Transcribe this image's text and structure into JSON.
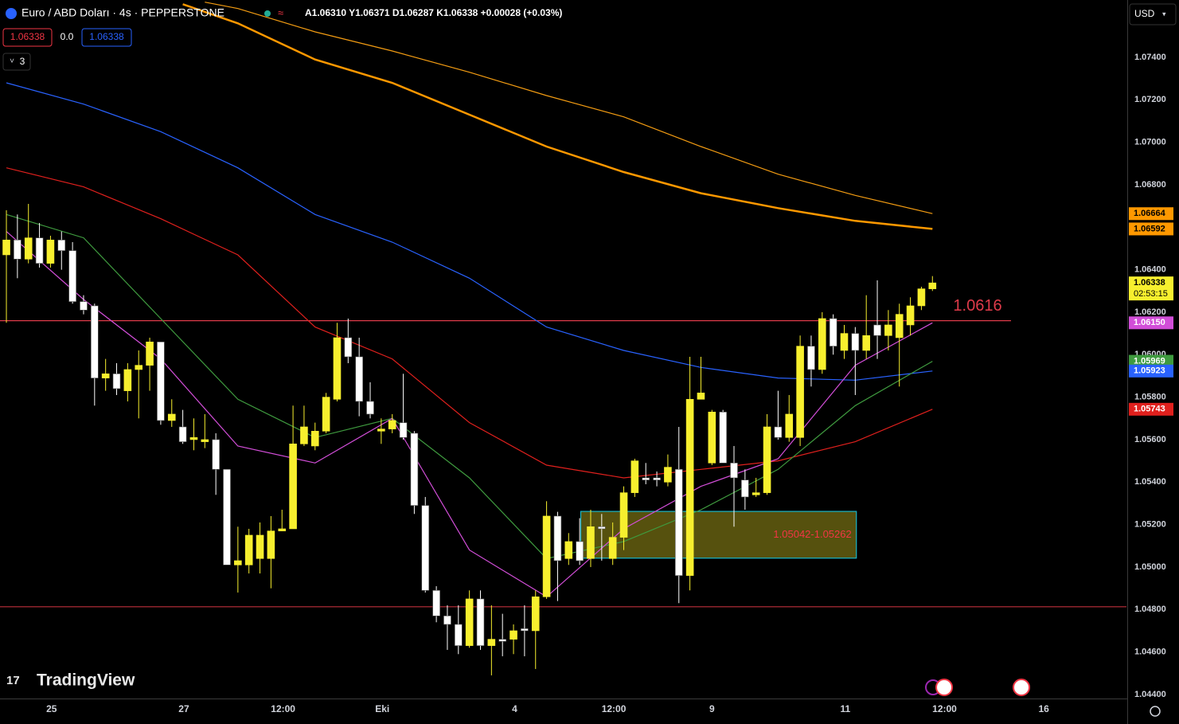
{
  "toolbar": {
    "symbol_title": "Euro / ABD Doları · 4s · PEPPERSTONE",
    "ohlc_legend": "A1.06310 Y1.06371 D1.06287 K1.06338 +0.00028 (+0.03%)",
    "bid": "1.06338",
    "spread": "0.0",
    "ask": "1.06338",
    "indicator_count": "3",
    "currency": "USD",
    "brand": "TradingView"
  },
  "chart_data": {
    "type": "candlestick",
    "candles": {
      "open": [
        1.0647,
        1.0654,
        1.0645,
        1.0655,
        1.0643,
        1.0654,
        1.0649,
        1.0625,
        1.0623,
        1.0589,
        1.0591,
        1.0583,
        1.0593,
        1.0595,
        1.0606,
        1.0569,
        1.0566,
        1.056,
        1.0559,
        1.056,
        1.0546,
        1.0501,
        1.0501,
        1.0504,
        1.0504,
        1.0517,
        1.0518,
        1.0558,
        1.0557,
        1.0564,
        1.0579,
        1.0608,
        1.0599,
        1.0578,
        1.0564,
        1.0565,
        1.0568,
        1.0563,
        1.0529,
        1.0489,
        1.0477,
        1.0473,
        1.0463,
        1.0485,
        1.0463,
        1.0466,
        1.0466,
        1.0471,
        1.047,
        1.0486,
        1.0524,
        1.0504,
        1.0512,
        1.0504,
        1.0519,
        1.0504,
        1.0514,
        1.0535,
        1.0542,
        1.0542,
        1.054,
        1.0546,
        1.0496,
        1.0579,
        1.0549,
        1.0573,
        1.0549,
        1.0541,
        1.0534,
        1.0535,
        1.0566,
        1.0561,
        1.0561,
        1.0604,
        1.0593,
        1.0617,
        1.0602,
        1.061,
        1.0602,
        1.0614,
        1.0609,
        1.0608,
        1.0614,
        1.0623,
        1.0631
      ],
      "high": [
        1.0668,
        1.0666,
        1.0671,
        1.0662,
        1.0656,
        1.0658,
        1.0653,
        1.0628,
        1.0624,
        1.0598,
        1.0596,
        1.0596,
        1.0602,
        1.0608,
        1.0606,
        1.0579,
        1.0574,
        1.057,
        1.0572,
        1.0563,
        1.0546,
        1.0519,
        1.0518,
        1.0521,
        1.0524,
        1.0527,
        1.0576,
        1.0576,
        1.0568,
        1.0582,
        1.0615,
        1.0617,
        1.0608,
        1.0587,
        1.057,
        1.0572,
        1.0591,
        1.0564,
        1.0533,
        1.0491,
        1.0482,
        1.0482,
        1.0489,
        1.0489,
        1.0482,
        1.0478,
        1.0473,
        1.0482,
        1.0489,
        1.0531,
        1.0526,
        1.0516,
        1.0523,
        1.0527,
        1.0525,
        1.0521,
        1.0538,
        1.0551,
        1.0549,
        1.0545,
        1.0553,
        1.0566,
        1.0599,
        1.0599,
        1.0574,
        1.0574,
        1.0557,
        1.0546,
        1.0542,
        1.0572,
        1.0583,
        1.0581,
        1.0609,
        1.0609,
        1.062,
        1.0619,
        1.0614,
        1.0613,
        1.0628,
        1.0635,
        1.0621,
        1.0624,
        1.0627,
        1.0632,
        1.0637
      ],
      "low": [
        1.0615,
        1.0636,
        1.0643,
        1.0641,
        1.0641,
        1.064,
        1.0624,
        1.0619,
        1.0576,
        1.0583,
        1.0581,
        1.0578,
        1.057,
        1.0583,
        1.0567,
        1.0566,
        1.0558,
        1.0555,
        1.0556,
        1.0534,
        1.0501,
        1.0488,
        1.0497,
        1.0497,
        1.049,
        1.0517,
        1.0518,
        1.0557,
        1.0555,
        1.0563,
        1.0578,
        1.0596,
        1.0571,
        1.057,
        1.0558,
        1.0563,
        1.056,
        1.0525,
        1.0488,
        1.0474,
        1.0461,
        1.0459,
        1.0462,
        1.0461,
        1.0449,
        1.0458,
        1.0459,
        1.0458,
        1.0452,
        1.0485,
        1.0484,
        1.0501,
        1.0501,
        1.05,
        1.0503,
        1.0501,
        1.0508,
        1.0533,
        1.0539,
        1.0538,
        1.0538,
        1.0483,
        1.0489,
        1.0579,
        1.0548,
        1.0549,
        1.0519,
        1.0527,
        1.0533,
        1.0534,
        1.056,
        1.0559,
        1.0557,
        1.0585,
        1.0591,
        1.06,
        1.0598,
        1.0581,
        1.0598,
        1.0598,
        1.0602,
        1.0585,
        1.0609,
        1.0621,
        1.063
      ],
      "close": [
        1.0654,
        1.0645,
        1.0655,
        1.0643,
        1.0654,
        1.0649,
        1.0625,
        1.0621,
        1.0589,
        1.0591,
        1.0584,
        1.0593,
        1.0595,
        1.0606,
        1.0569,
        1.0572,
        1.0559,
        1.0561,
        1.056,
        1.0546,
        1.0501,
        1.0503,
        1.0515,
        1.0515,
        1.0517,
        1.0518,
        1.0558,
        1.0566,
        1.0564,
        1.058,
        1.0608,
        1.0599,
        1.0578,
        1.0572,
        1.0565,
        1.0569,
        1.0561,
        1.0529,
        1.0489,
        1.0477,
        1.0473,
        1.0463,
        1.0485,
        1.0463,
        1.0466,
        1.0465,
        1.047,
        1.047,
        1.0486,
        1.0524,
        1.0503,
        1.0512,
        1.0503,
        1.0519,
        1.0518,
        1.0514,
        1.0535,
        1.055,
        1.0541,
        1.0541,
        1.0547,
        1.0496,
        1.0579,
        1.0582,
        1.0573,
        1.0549,
        1.0542,
        1.0533,
        1.0535,
        1.0566,
        1.0561,
        1.0572,
        1.0604,
        1.0593,
        1.0617,
        1.0604,
        1.061,
        1.0602,
        1.0609,
        1.0609,
        1.0614,
        1.0619,
        1.0623,
        1.0631,
        1.06338
      ]
    },
    "up_color": "#f7ef2e",
    "down_color": "#ffffff",
    "countdown": "02:53:15",
    "series": [
      {
        "color": "#ff9800",
        "width": 2.5,
        "x": [
          16,
          21,
          28,
          35,
          42,
          49,
          56,
          63,
          70,
          77,
          84
        ],
        "values": [
          1.0765,
          1.0756,
          1.0739,
          1.0728,
          1.0713,
          1.0698,
          1.0686,
          1.0676,
          1.0669,
          1.0663,
          1.06592
        ]
      },
      {
        "color": "#f39c12",
        "width": 1.2,
        "x": [
          18,
          21,
          28,
          35,
          42,
          49,
          56,
          63,
          70,
          77,
          84
        ],
        "values": [
          1.0766,
          1.0763,
          1.0752,
          1.0743,
          1.0733,
          1.0722,
          1.0712,
          1.0698,
          1.0685,
          1.0675,
          1.06664
        ]
      },
      {
        "color": "#2962ff",
        "width": 1.2,
        "x": [
          0,
          7,
          14,
          21,
          28,
          35,
          42,
          49,
          56,
          63,
          70,
          77,
          84
        ],
        "values": [
          1.0728,
          1.0718,
          1.0705,
          1.0688,
          1.0666,
          1.0653,
          1.0636,
          1.0613,
          1.0602,
          1.0594,
          1.0589,
          1.0588,
          1.05923
        ]
      },
      {
        "color": "#e0201d",
        "width": 1.2,
        "x": [
          0,
          7,
          14,
          21,
          28,
          35,
          42,
          49,
          56,
          63,
          70,
          77,
          84
        ],
        "values": [
          1.0688,
          1.0679,
          1.0664,
          1.0647,
          1.0613,
          1.0598,
          1.0568,
          1.0548,
          1.0542,
          1.0546,
          1.055,
          1.0559,
          1.05743
        ]
      },
      {
        "color": "#3f9b3f",
        "width": 1.2,
        "x": [
          0,
          7,
          14,
          21,
          28,
          35,
          42,
          49,
          56,
          63,
          70,
          77,
          84
        ],
        "values": [
          1.0666,
          1.0655,
          1.0617,
          1.0579,
          1.0561,
          1.057,
          1.0542,
          1.0504,
          1.0512,
          1.0527,
          1.0546,
          1.0576,
          1.05969
        ]
      },
      {
        "color": "#d24ed8",
        "width": 1.2,
        "x": [
          0,
          7,
          14,
          21,
          28,
          35,
          42,
          49,
          56,
          63,
          70,
          77,
          84
        ],
        "values": [
          1.0658,
          1.0626,
          1.0598,
          1.0557,
          1.0549,
          1.057,
          1.0508,
          1.0486,
          1.0518,
          1.0538,
          1.0551,
          1.0595,
          1.0615
        ]
      }
    ],
    "hlines": [
      {
        "value": 1.0616,
        "label": "1.0616",
        "color": "#e03b4a"
      },
      {
        "value": 1.04813,
        "color": "#c0303c"
      }
    ],
    "zone": {
      "x": [
        52.1,
        77.1
      ],
      "y": [
        1.05042,
        1.05262
      ],
      "label": "1.05042-1.05262"
    },
    "axis_tags": [
      {
        "value": 1.06664,
        "label": "1.06664",
        "color": "#ff9800"
      },
      {
        "value": 1.06592,
        "label": "1.06592",
        "color": "#ff9800"
      },
      {
        "value": 1.0615,
        "label": "1.06150",
        "color": "#d24ed8"
      },
      {
        "value": 1.05969,
        "label": "1.05969",
        "color": "#3f9b3f"
      },
      {
        "value": 1.05923,
        "label": "1.05923",
        "color": "#2962ff"
      },
      {
        "value": 1.05743,
        "label": "1.05743",
        "color": "#e0201d"
      }
    ],
    "ylim": [
      1.04381,
      1.0767
    ],
    "yticks": [
      {
        "value": 1.074,
        "label": "1.07400"
      },
      {
        "value": 1.072,
        "label": "1.07200"
      },
      {
        "value": 1.07,
        "label": "1.07000"
      },
      {
        "value": 1.068,
        "label": "1.06800"
      },
      {
        "value": 1.064,
        "label": "1.06400"
      },
      {
        "value": 1.062,
        "label": "1.06200"
      },
      {
        "value": 1.06,
        "label": "1.06000"
      },
      {
        "value": 1.058,
        "label": "1.05800"
      },
      {
        "value": 1.056,
        "label": "1.05600"
      },
      {
        "value": 1.054,
        "label": "1.05400"
      },
      {
        "value": 1.052,
        "label": "1.05200"
      },
      {
        "value": 1.05,
        "label": "1.05000"
      },
      {
        "value": 1.048,
        "label": "1.04800"
      },
      {
        "value": 1.046,
        "label": "1.04600"
      },
      {
        "value": 1.044,
        "label": "1.04400"
      }
    ],
    "xlim": [
      -0.58,
      101.6
    ],
    "xticks": [
      {
        "value": 4.1,
        "label": "25"
      },
      {
        "value": 16.1,
        "label": "27"
      },
      {
        "value": 25.1,
        "label": "12:00"
      },
      {
        "value": 34.1,
        "label": "Eki"
      },
      {
        "value": 46.1,
        "label": "4"
      },
      {
        "value": 55.1,
        "label": "12:00"
      },
      {
        "value": 64,
        "label": "9"
      },
      {
        "value": 76.1,
        "label": "11"
      },
      {
        "value": 85.1,
        "label": "12:00"
      },
      {
        "value": 94.1,
        "label": "16"
      }
    ],
    "grid": false
  }
}
